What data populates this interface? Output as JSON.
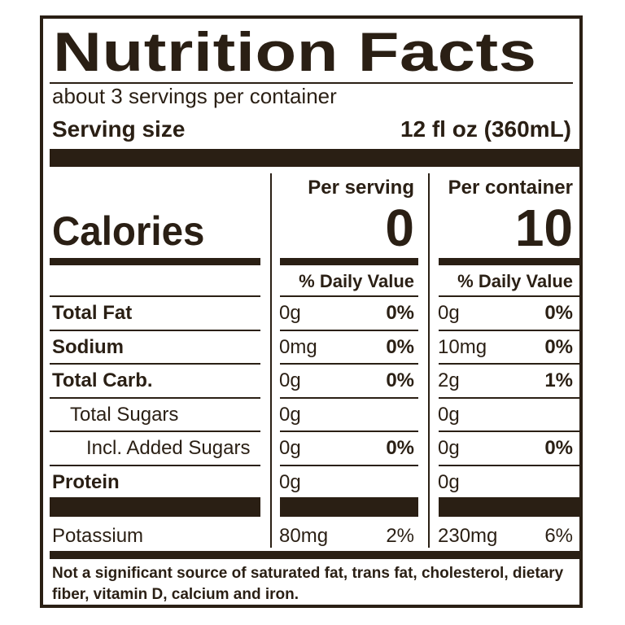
{
  "title": "Nutrition Facts",
  "servings_per_container": "about 3 servings per container",
  "serving_size": {
    "label": "Serving size",
    "value": "12 fl oz (360mL)"
  },
  "columns": {
    "per_serving": "Per serving",
    "per_container": "Per container"
  },
  "calories": {
    "label": "Calories",
    "per_serving": "0",
    "per_container": "10"
  },
  "daily_value_label": "% Daily Value",
  "nutrients": [
    {
      "name": "Total Fat",
      "bold": true,
      "indent": 0,
      "serving_amount": "0g",
      "serving_dv": "0%",
      "container_amount": "0g",
      "container_dv": "0%"
    },
    {
      "name": "Sodium",
      "bold": true,
      "indent": 0,
      "serving_amount": "0mg",
      "serving_dv": "0%",
      "container_amount": "10mg",
      "container_dv": "0%"
    },
    {
      "name": "Total Carb.",
      "bold": true,
      "indent": 0,
      "serving_amount": "0g",
      "serving_dv": "0%",
      "container_amount": "2g",
      "container_dv": "1%"
    },
    {
      "name": "Total Sugars",
      "bold": false,
      "indent": 1,
      "serving_amount": "0g",
      "serving_dv": "",
      "container_amount": "0g",
      "container_dv": ""
    },
    {
      "name": "Incl. Added Sugars",
      "bold": false,
      "indent": 2,
      "serving_amount": "0g",
      "serving_dv": "0%",
      "container_amount": "0g",
      "container_dv": "0%"
    },
    {
      "name": "Protein",
      "bold": true,
      "indent": 0,
      "serving_amount": "0g",
      "serving_dv": "",
      "container_amount": "0g",
      "container_dv": ""
    }
  ],
  "potassium": {
    "name": "Potassium",
    "serving_amount": "80mg",
    "serving_dv": "2%",
    "container_amount": "230mg",
    "container_dv": "6%"
  },
  "footnote": "Not a significant source of saturated fat, trans fat, cholesterol, dietary fiber, vitamin D, calcium and iron.",
  "colors": {
    "ink": "#2a1f14",
    "background": "#ffffff"
  }
}
